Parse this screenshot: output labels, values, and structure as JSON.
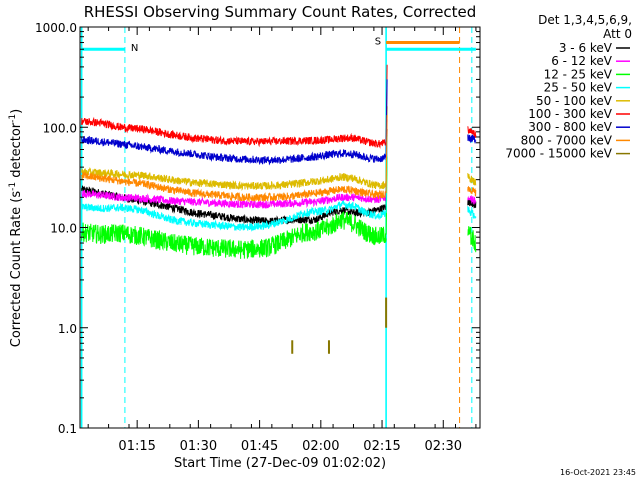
{
  "chart_data": {
    "type": "line",
    "title": "RHESSI Observing Summary Count Rates, Corrected",
    "xlabel": "Start Time (27-Dec-09 01:02:02)",
    "ylabel_parts": [
      "Corrected Count Rate (s",
      "-1",
      " detector",
      "-1",
      ")"
    ],
    "y_scale": "log",
    "ylim": [
      0.1,
      1000
    ],
    "xlim": [
      "01:02",
      "02:40"
    ],
    "x_ticks": [
      {
        "t": 1.2667,
        "label": "01:15"
      },
      {
        "t": 1.5167,
        "label": "01:30"
      },
      {
        "t": 1.7667,
        "label": "01:45"
      },
      {
        "t": 2.0167,
        "label": "02:00"
      },
      {
        "t": 2.2667,
        "label": "02:15"
      },
      {
        "t": 2.5167,
        "label": "02:30"
      }
    ],
    "y_ticks": [
      {
        "v": 1000,
        "label": "1000.0"
      },
      {
        "v": 100,
        "label": "100.0"
      },
      {
        "v": 10,
        "label": "10.0"
      },
      {
        "v": 1,
        "label": "1.0"
      },
      {
        "v": 0.1,
        "label": "0.1"
      }
    ],
    "legend_header": [
      "Det 1,3,4,5,6,9,",
      "Att 0"
    ],
    "legend_placement": "right",
    "series": [
      {
        "name": "3 - 6 keV",
        "color": "#000000",
        "points": [
          [
            1.04,
            24
          ],
          [
            1.12,
            22
          ],
          [
            1.2,
            20
          ],
          [
            1.3,
            18
          ],
          [
            1.4,
            16
          ],
          [
            1.5,
            14
          ],
          [
            1.6,
            13
          ],
          [
            1.7,
            12
          ],
          [
            1.8,
            11.5
          ],
          [
            1.9,
            12
          ],
          [
            2.0,
            12
          ],
          [
            2.05,
            14
          ],
          [
            2.1,
            15
          ],
          [
            2.15,
            14
          ],
          [
            2.2,
            14
          ],
          [
            2.25,
            15
          ],
          [
            2.2833,
            16
          ]
        ]
      },
      {
        "name": "6 - 12 keV",
        "color": "#ff00ff",
        "points": [
          [
            1.04,
            22
          ],
          [
            1.12,
            21
          ],
          [
            1.2,
            20
          ],
          [
            1.3,
            19.5
          ],
          [
            1.4,
            18.5
          ],
          [
            1.5,
            18
          ],
          [
            1.6,
            17.5
          ],
          [
            1.7,
            17
          ],
          [
            1.8,
            17
          ],
          [
            1.9,
            17.5
          ],
          [
            2.0,
            18
          ],
          [
            2.05,
            19
          ],
          [
            2.1,
            20
          ],
          [
            2.15,
            20
          ],
          [
            2.2,
            19.5
          ],
          [
            2.25,
            19
          ],
          [
            2.2833,
            20
          ]
        ]
      },
      {
        "name": "12 - 25 keV",
        "color": "#00ff00",
        "points": [
          [
            1.04,
            9
          ],
          [
            1.12,
            8.5
          ],
          [
            1.2,
            8.8
          ],
          [
            1.28,
            8.2
          ],
          [
            1.4,
            7
          ],
          [
            1.5,
            6.5
          ],
          [
            1.6,
            6.2
          ],
          [
            1.7,
            6
          ],
          [
            1.8,
            6.3
          ],
          [
            1.88,
            7.5
          ],
          [
            1.95,
            9
          ],
          [
            2.0,
            9.2
          ],
          [
            2.05,
            10
          ],
          [
            2.1,
            12
          ],
          [
            2.15,
            11
          ],
          [
            2.2,
            9
          ],
          [
            2.25,
            8
          ],
          [
            2.2833,
            8.5
          ]
        ]
      },
      {
        "name": "25 - 50 keV",
        "color": "#00ffff",
        "points": [
          [
            1.04,
            16
          ],
          [
            1.12,
            15.5
          ],
          [
            1.2,
            15.8
          ],
          [
            1.28,
            15
          ],
          [
            1.4,
            12
          ],
          [
            1.5,
            11
          ],
          [
            1.6,
            10.5
          ],
          [
            1.7,
            10
          ],
          [
            1.8,
            10.5
          ],
          [
            1.88,
            12
          ],
          [
            1.95,
            14
          ],
          [
            2.0,
            14.5
          ],
          [
            2.05,
            15
          ],
          [
            2.1,
            17
          ],
          [
            2.15,
            16.5
          ],
          [
            2.2,
            14
          ],
          [
            2.25,
            13
          ],
          [
            2.2833,
            14
          ]
        ]
      },
      {
        "name": "50 - 100 keV",
        "color": "#ddbb00",
        "points": [
          [
            1.04,
            36
          ],
          [
            1.12,
            35
          ],
          [
            1.2,
            34
          ],
          [
            1.3,
            33
          ],
          [
            1.4,
            30
          ],
          [
            1.5,
            28
          ],
          [
            1.6,
            27
          ],
          [
            1.7,
            26
          ],
          [
            1.8,
            26
          ],
          [
            1.9,
            27
          ],
          [
            2.0,
            29
          ],
          [
            2.05,
            30
          ],
          [
            2.1,
            32
          ],
          [
            2.15,
            31
          ],
          [
            2.2,
            28
          ],
          [
            2.25,
            26
          ],
          [
            2.2833,
            27
          ]
        ]
      },
      {
        "name": "100 - 300 keV",
        "color": "#ff0000",
        "points": [
          [
            1.04,
            115
          ],
          [
            1.12,
            110
          ],
          [
            1.2,
            100
          ],
          [
            1.3,
            95
          ],
          [
            1.4,
            85
          ],
          [
            1.5,
            78
          ],
          [
            1.6,
            74
          ],
          [
            1.7,
            72
          ],
          [
            1.8,
            72
          ],
          [
            1.9,
            73
          ],
          [
            2.0,
            74
          ],
          [
            2.05,
            75
          ],
          [
            2.1,
            78
          ],
          [
            2.15,
            78
          ],
          [
            2.2,
            72
          ],
          [
            2.25,
            68
          ],
          [
            2.2833,
            70
          ]
        ]
      },
      {
        "name": "300 - 800 keV",
        "color": "#0000cc",
        "points": [
          [
            1.04,
            75
          ],
          [
            1.12,
            72
          ],
          [
            1.2,
            68
          ],
          [
            1.3,
            63
          ],
          [
            1.4,
            58
          ],
          [
            1.5,
            54
          ],
          [
            1.6,
            50
          ],
          [
            1.7,
            48
          ],
          [
            1.8,
            47
          ],
          [
            1.9,
            48
          ],
          [
            2.0,
            51
          ],
          [
            2.05,
            53
          ],
          [
            2.1,
            55
          ],
          [
            2.15,
            54
          ],
          [
            2.2,
            50
          ],
          [
            2.25,
            48
          ],
          [
            2.2833,
            50
          ]
        ]
      },
      {
        "name": "800 - 7000 keV",
        "color": "#ff8800",
        "points": [
          [
            1.04,
            33
          ],
          [
            1.12,
            31
          ],
          [
            1.2,
            29
          ],
          [
            1.3,
            27
          ],
          [
            1.4,
            24
          ],
          [
            1.5,
            22
          ],
          [
            1.6,
            21
          ],
          [
            1.7,
            20
          ],
          [
            1.8,
            20
          ],
          [
            1.9,
            20.5
          ],
          [
            2.0,
            22
          ],
          [
            2.05,
            23
          ],
          [
            2.1,
            24
          ],
          [
            2.15,
            23.5
          ],
          [
            2.2,
            22
          ],
          [
            2.25,
            21
          ],
          [
            2.2833,
            22
          ]
        ]
      },
      {
        "name": "7000 - 15000 keV",
        "color": "#887700",
        "points": []
      }
    ],
    "series_after_gap": [
      {
        "name": "3 - 6 keV",
        "color": "#000000",
        "points": [
          [
            2.6167,
            18
          ],
          [
            2.65,
            17
          ]
        ]
      },
      {
        "name": "6 - 12 keV",
        "color": "#ff00ff",
        "points": [
          [
            2.6167,
            20
          ],
          [
            2.65,
            18
          ]
        ]
      },
      {
        "name": "12 - 25 keV",
        "color": "#00ff00",
        "points": [
          [
            2.6167,
            9
          ],
          [
            2.65,
            7
          ]
        ]
      },
      {
        "name": "25 - 50 keV",
        "color": "#00ffff",
        "points": [
          [
            2.6167,
            15
          ],
          [
            2.65,
            13
          ]
        ]
      },
      {
        "name": "50 - 100 keV",
        "color": "#ddbb00",
        "points": [
          [
            2.6167,
            32
          ],
          [
            2.65,
            28
          ]
        ]
      },
      {
        "name": "100 - 300 keV",
        "color": "#ff0000",
        "points": [
          [
            2.6167,
            95
          ],
          [
            2.65,
            85
          ]
        ]
      },
      {
        "name": "300 - 800 keV",
        "color": "#0000cc",
        "points": [
          [
            2.6167,
            80
          ],
          [
            2.65,
            75
          ]
        ]
      },
      {
        "name": "800 - 7000 keV",
        "color": "#ff8800",
        "points": [
          [
            2.6167,
            25
          ],
          [
            2.65,
            22
          ]
        ]
      }
    ],
    "spikes_7000_15000": [
      [
        1.9,
        0.55,
        0.75
      ],
      [
        2.05,
        0.55,
        0.75
      ],
      [
        2.2833,
        1.0,
        2.0
      ]
    ],
    "flags": {
      "night_bar": {
        "label": "N",
        "t_start": 1.04,
        "t_end": 1.2167,
        "level": 600,
        "color": "#00ffff"
      },
      "saa_bar": {
        "label": "S",
        "t_start": 2.2833,
        "t_end": 2.5833,
        "level": 700,
        "color": "#ff8800"
      },
      "saa_bar_2": {
        "t_start": 2.2833,
        "t_end": 2.65,
        "level": 600,
        "color": "#00ffff"
      },
      "dashed_lines": [
        {
          "t": 1.2167,
          "color": "#00ffff"
        },
        {
          "t": 2.5833,
          "color": "#ff8800"
        },
        {
          "t": 2.6333,
          "color": "#00ffff"
        }
      ],
      "solid_lines": [
        {
          "t": 2.2833,
          "color": "#00ffff"
        },
        {
          "t": 1.04,
          "color": "#00ffff"
        }
      ]
    }
  },
  "footer_timestamp": "16-Oct-2021 23:45"
}
